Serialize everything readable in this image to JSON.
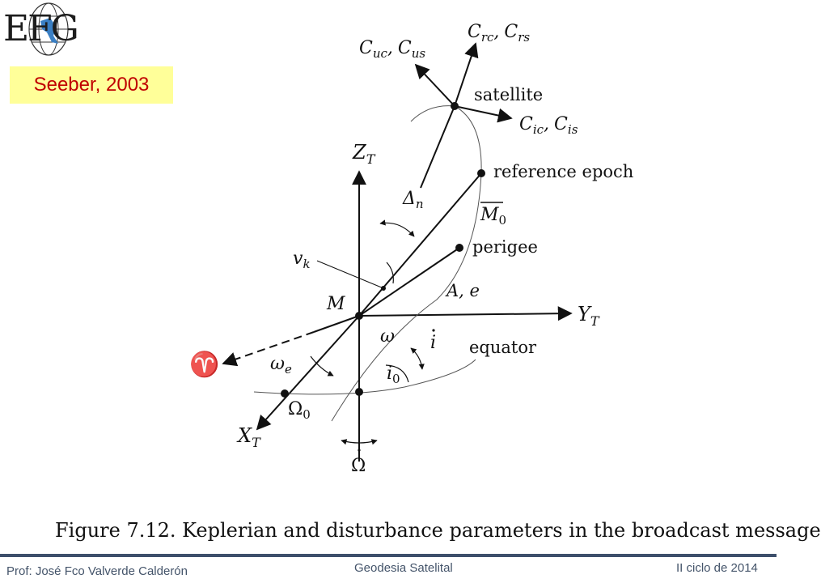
{
  "logo": {
    "text": "EFG"
  },
  "citation": "Seeber, 2003",
  "labels": {
    "c_uc": "C",
    "c_uc_sub": "uc",
    "c_us": "C",
    "c_us_sub": "us",
    "c_rc": "C",
    "c_rc_sub": "rc",
    "c_rs": "C",
    "c_rs_sub": "rs",
    "c_ic": "C",
    "c_ic_sub": "ic",
    "c_is": "C",
    "c_is_sub": "is",
    "comma": ",",
    "satellite": "satellite",
    "reference_epoch": "reference epoch",
    "perigee": "perigee",
    "equator": "equator",
    "z_t": "Z",
    "y_t": "Y",
    "x_t": "X",
    "t_sub": "T",
    "delta_n": "Δ",
    "delta_n_sub": "n",
    "m0_bar": "M",
    "m0_sub": "0",
    "v_k": "v",
    "v_k_sub": "k",
    "m_center": "M",
    "a_e": "A, e",
    "omega": "ω",
    "i_dot": "i",
    "i0": "i",
    "i0_sub": "0",
    "omega_e": "ω",
    "omega_e_sub": "e",
    "aries": "♈",
    "capital_omega0": "Ω",
    "capital_omega0_sub": "0",
    "capital_omega_dot": "Ω"
  },
  "caption": "Figure 7.12.  Keplerian and disturbance parameters in the broadcast message",
  "footer": {
    "left": "Prof: José Fco Valverde Calderón",
    "center": "Geodesia Satelital",
    "right": "II ciclo de 2014"
  }
}
